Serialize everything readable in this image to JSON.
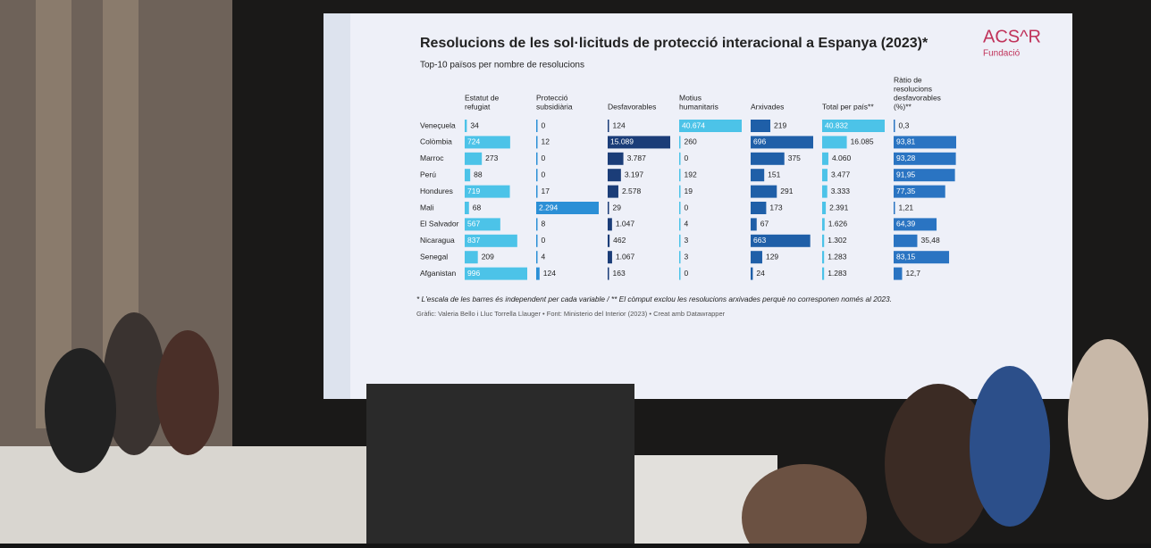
{
  "header": {
    "title": "Resolucions de les sol·licituds de protecció interacional a Espanya (2023)*",
    "subtitle": "Top-10 països per nombre de resolucions",
    "logo": "ACS^R",
    "logo_sub": "Fundació"
  },
  "table": {
    "columns": [
      [
        "Estatut de",
        "refugiat"
      ],
      [
        "Protecció",
        "subsidiària"
      ],
      [
        "Desfavorables"
      ],
      [
        "Motius",
        "humanitaris"
      ],
      [
        "Arxivades"
      ],
      [
        "Total per país**"
      ],
      [
        "Ràtio de",
        "resolucions",
        "desfavorables",
        "(%)**"
      ]
    ],
    "colors": [
      "#4cc3e8",
      "#2b8fd6",
      "#1b3d78",
      "#4cc3e8",
      "#1f5fa8",
      "#4cc3e8",
      "#2a74c2"
    ],
    "rows": [
      {
        "country": "Veneçuela",
        "cells": [
          34,
          0,
          124,
          {
            "value": 40674,
            "label": "40.674"
          },
          219,
          {
            "value": 40832,
            "label": "40.832"
          },
          {
            "value": 0.3,
            "label": "0,3"
          }
        ]
      },
      {
        "country": "Colòmbia",
        "cells": [
          724,
          12,
          {
            "value": 15089,
            "label": "15.089"
          },
          260,
          696,
          {
            "value": 16085,
            "label": "16.085"
          },
          {
            "value": 93.81,
            "label": "93,81"
          }
        ]
      },
      {
        "country": "Marroc",
        "cells": [
          273,
          0,
          {
            "value": 3787,
            "label": "3.787"
          },
          0,
          375,
          {
            "value": 4060,
            "label": "4.060"
          },
          {
            "value": 93.28,
            "label": "93,28"
          }
        ]
      },
      {
        "country": "Perú",
        "cells": [
          88,
          0,
          {
            "value": 3197,
            "label": "3.197"
          },
          192,
          151,
          {
            "value": 3477,
            "label": "3.477"
          },
          {
            "value": 91.95,
            "label": "91,95"
          }
        ]
      },
      {
        "country": "Hondures",
        "cells": [
          719,
          17,
          {
            "value": 2578,
            "label": "2.578"
          },
          19,
          291,
          {
            "value": 3333,
            "label": "3.333"
          },
          {
            "value": 77.35,
            "label": "77,35"
          }
        ]
      },
      {
        "country": "Mali",
        "cells": [
          68,
          {
            "value": 2294,
            "label": "2.294"
          },
          29,
          0,
          173,
          {
            "value": 2391,
            "label": "2.391"
          },
          {
            "value": 1.21,
            "label": "1,21"
          }
        ]
      },
      {
        "country": "El Salvador",
        "cells": [
          567,
          8,
          {
            "value": 1047,
            "label": "1.047"
          },
          4,
          67,
          {
            "value": 1626,
            "label": "1.626"
          },
          {
            "value": 64.39,
            "label": "64,39"
          }
        ]
      },
      {
        "country": "Nicaragua",
        "cells": [
          837,
          0,
          462,
          3,
          663,
          {
            "value": 1302,
            "label": "1.302"
          },
          {
            "value": 35.48,
            "label": "35,48"
          }
        ]
      },
      {
        "country": "Senegal",
        "cells": [
          209,
          4,
          {
            "value": 1067,
            "label": "1.067"
          },
          3,
          129,
          {
            "value": 1283,
            "label": "1.283"
          },
          {
            "value": 83.15,
            "label": "83,15"
          }
        ]
      },
      {
        "country": "Afganistan",
        "cells": [
          996,
          124,
          163,
          0,
          24,
          {
            "value": 1283,
            "label": "1.283"
          },
          {
            "value": 12.7,
            "label": "12,7"
          }
        ]
      }
    ]
  },
  "footer": {
    "note": "* L'escala de les barres és independent per cada variable / ** El còmput exclou les resolucions arxivades perquè no corresponen només al 2023.",
    "credit": "Gràfic: Valeria Bello i Lluc Torrella Llauger • Font: Ministerio del Interior (2023) • Creat amb Datawrapper"
  }
}
